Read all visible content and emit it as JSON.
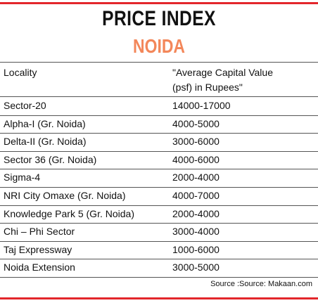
{
  "header": {
    "title": "PRICE INDEX",
    "subtitle": "NOIDA"
  },
  "table": {
    "columns": [
      "Locality",
      [
        "\"Average Capital Value",
        "(psf) in Rupees\""
      ]
    ],
    "rows": [
      [
        "Sector-20",
        "14000-17000"
      ],
      [
        "Alpha-I (Gr. Noida)",
        "4000-5000"
      ],
      [
        "Delta-II (Gr. Noida)",
        "3000-6000"
      ],
      [
        "Sector 36 (Gr. Noida)",
        "4000-6000"
      ],
      [
        "Sigma-4",
        "2000-4000"
      ],
      [
        "NRI City Omaxe (Gr. Noida)",
        "4000-7000"
      ],
      [
        "Knowledge Park 5 (Gr. Noida)",
        "2000-4000"
      ],
      [
        "Chi – Phi Sector",
        "3000-4000"
      ],
      [
        "Taj Expressway",
        "1000-6000"
      ],
      [
        "Noida Extension",
        "3000-5000"
      ]
    ]
  },
  "footer": {
    "source": "Source :Source: Makaan.com"
  }
}
